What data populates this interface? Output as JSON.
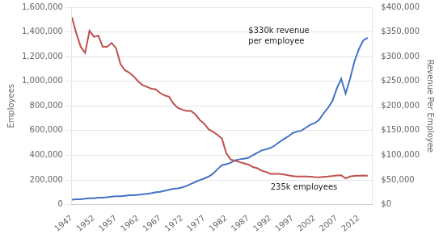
{
  "chart_data": {
    "type": "line",
    "x": [
      1947,
      1948,
      1949,
      1950,
      1951,
      1952,
      1953,
      1954,
      1955,
      1956,
      1957,
      1958,
      1959,
      1960,
      1961,
      1962,
      1963,
      1964,
      1965,
      1966,
      1967,
      1968,
      1969,
      1970,
      1971,
      1972,
      1973,
      1974,
      1975,
      1976,
      1977,
      1978,
      1979,
      1980,
      1981,
      1982,
      1983,
      1984,
      1985,
      1986,
      1987,
      1988,
      1989,
      1990,
      1991,
      1992,
      1993,
      1994,
      1995,
      1996,
      1997,
      1998,
      1999,
      2000,
      2001,
      2002,
      2003,
      2004,
      2005,
      2006,
      2007,
      2008,
      2009,
      2010,
      2011,
      2012,
      2013,
      2014
    ],
    "xlim": [
      1947,
      2015
    ],
    "xticks": [
      1947,
      1952,
      1957,
      1962,
      1967,
      1972,
      1977,
      1982,
      1987,
      1992,
      1997,
      2002,
      2007,
      2012
    ],
    "ylim": [
      0,
      1600000
    ],
    "yticks": [
      0,
      {
        "value": 200000,
        "label": "200,000"
      },
      {
        "value": 400000,
        "label": "400,000"
      },
      {
        "value": 600000,
        "label": "600,000"
      },
      {
        "value": 800000,
        "label": "800,000"
      },
      {
        "value": 1000000,
        "label": "1,000,000"
      },
      {
        "value": 1200000,
        "label": "1,200,000"
      },
      {
        "value": 1400000,
        "label": "1,400,000"
      },
      {
        "value": 1600000,
        "label": "1,600,000"
      }
    ],
    "y2lim": [
      0,
      400000
    ],
    "y2ticks": [
      {
        "value": 0,
        "label": "$0"
      },
      {
        "value": 50000,
        "label": "$50,000"
      },
      {
        "value": 100000,
        "label": "$100,000"
      },
      {
        "value": 150000,
        "label": "$150,000"
      },
      {
        "value": 200000,
        "label": "$200,000"
      },
      {
        "value": 250000,
        "label": "$250,000"
      },
      {
        "value": 300000,
        "label": "$300,000"
      },
      {
        "value": 350000,
        "label": "$350,000"
      },
      {
        "value": 400000,
        "label": "$400,000"
      }
    ],
    "ylabel": "Employees",
    "y2label": "Revenue Per Employee",
    "grid": "y",
    "series": [
      {
        "color": "#c0504d",
        "values": [
          1520000,
          1390000,
          1280000,
          1230000,
          1410000,
          1360000,
          1370000,
          1280000,
          1280000,
          1310000,
          1270000,
          1140000,
          1090000,
          1070000,
          1040000,
          1000000,
          970000,
          955000,
          940000,
          935000,
          905000,
          885000,
          875000,
          820000,
          785000,
          770000,
          760000,
          760000,
          730000,
          685000,
          655000,
          610000,
          590000,
          565000,
          535000,
          415000,
          365000,
          355000,
          345000,
          335000,
          325000,
          305000,
          295000,
          275000,
          265000,
          250000,
          250000,
          250000,
          245000,
          238000,
          232000,
          228000,
          228000,
          228000,
          226000,
          223000,
          222000,
          225000,
          228000,
          232000,
          236000,
          238000,
          213000,
          228000,
          233000,
          235000,
          236000,
          234000
        ]
      },
      {
        "color": "#4472c4",
        "axis": "y2",
        "values": [
          10000,
          11000,
          11000,
          12000,
          13000,
          13000,
          14000,
          14000,
          15000,
          16000,
          17000,
          17000,
          18000,
          19000,
          19000,
          20000,
          21000,
          22000,
          23000,
          25000,
          26000,
          28000,
          30000,
          32000,
          33000,
          35000,
          38000,
          42000,
          46000,
          50000,
          53000,
          57000,
          63000,
          72000,
          80000,
          82000,
          85000,
          90000,
          92000,
          93000,
          95000,
          100000,
          105000,
          110000,
          112000,
          115000,
          120000,
          127000,
          133000,
          138000,
          145000,
          148000,
          150000,
          156000,
          162000,
          165000,
          172000,
          185000,
          196000,
          210000,
          235000,
          255000,
          225000,
          255000,
          290000,
          315000,
          333000,
          338000
        ]
      }
    ],
    "annotations": [
      {
        "text": "$330k revenue\nper employee",
        "x": 1987,
        "y": 360000,
        "axis": "y2"
      },
      {
        "text": "235k employees",
        "x": 1992,
        "y": 170000,
        "axis": "y"
      }
    ]
  }
}
